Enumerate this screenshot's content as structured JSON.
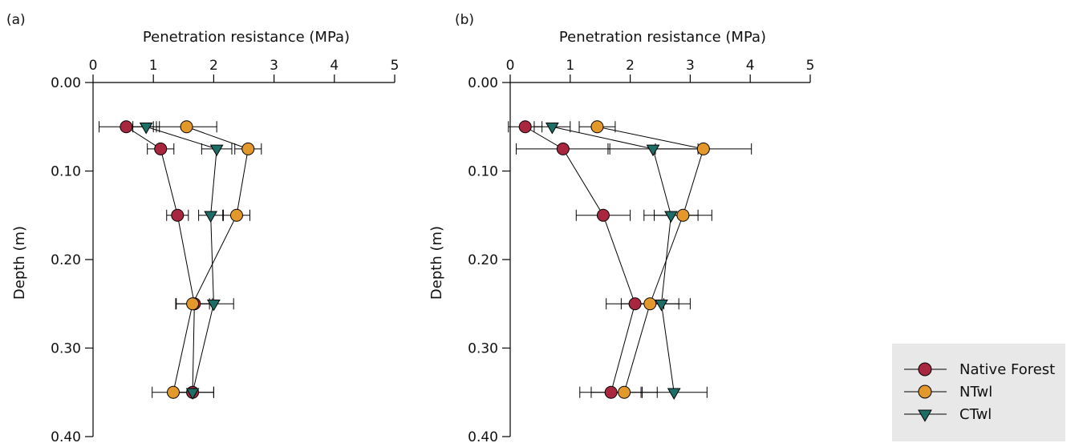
{
  "chart_data": [
    {
      "type": "scatter",
      "panel_label": "(a)",
      "xlabel": "Penetration resistance (MPa)",
      "ylabel": "Depth (m)",
      "xlim": [
        0,
        5
      ],
      "ylim": [
        0,
        0.4
      ],
      "x_ticks": [
        "0",
        "1",
        "2",
        "3",
        "4",
        "5"
      ],
      "y_ticks": [
        "0.00",
        "0.10",
        "0.20",
        "0.30",
        "0.40"
      ],
      "series": [
        {
          "name": "Native Forest",
          "marker": "circle",
          "color": "#a8273f",
          "points": [
            {
              "x": 0.55,
              "y": 0.05,
              "err": 0.45
            },
            {
              "x": 1.12,
              "y": 0.075,
              "err": 0.22
            },
            {
              "x": 1.4,
              "y": 0.15,
              "err": 0.18
            },
            {
              "x": 1.68,
              "y": 0.25,
              "err": 0.3
            },
            {
              "x": 1.65,
              "y": 0.35,
              "err": 0.35
            }
          ]
        },
        {
          "name": "NTwl",
          "marker": "circle",
          "color": "#e3982c",
          "points": [
            {
              "x": 1.55,
              "y": 0.05,
              "err": 0.5
            },
            {
              "x": 2.57,
              "y": 0.075,
              "err": 0.22
            },
            {
              "x": 2.38,
              "y": 0.15,
              "err": 0.22
            },
            {
              "x": 1.65,
              "y": 0.25,
              "err": 0.28
            },
            {
              "x": 1.33,
              "y": 0.35,
              "err": 0.35
            }
          ]
        },
        {
          "name": "CTwl",
          "marker": "triangle-down",
          "color": "#1e6e68",
          "points": [
            {
              "x": 0.88,
              "y": 0.05,
              "err": 0.22
            },
            {
              "x": 2.05,
              "y": 0.075,
              "err": 0.25
            },
            {
              "x": 1.95,
              "y": 0.15,
              "err": 0.2
            },
            {
              "x": 2.0,
              "y": 0.25,
              "err": 0.33
            },
            {
              "x": 1.65,
              "y": 0.35,
              "err": 0.35
            }
          ]
        }
      ]
    },
    {
      "type": "scatter",
      "panel_label": "(b)",
      "xlabel": "Penetration resistance (MPa)",
      "ylabel": "Depth (m)",
      "xlim": [
        0,
        5
      ],
      "ylim": [
        0,
        0.4
      ],
      "x_ticks": [
        "0",
        "1",
        "2",
        "3",
        "4",
        "5"
      ],
      "y_ticks": [
        "0.00",
        "0.10",
        "0.20",
        "0.30",
        "0.40"
      ],
      "series": [
        {
          "name": "Native Forest",
          "marker": "circle",
          "color": "#a8273f",
          "points": [
            {
              "x": 0.25,
              "y": 0.05,
              "err": 0.28
            },
            {
              "x": 0.88,
              "y": 0.075,
              "err": 0.78
            },
            {
              "x": 1.55,
              "y": 0.15,
              "err": 0.45
            },
            {
              "x": 2.08,
              "y": 0.25,
              "err": 0.48
            },
            {
              "x": 1.68,
              "y": 0.35,
              "err": 0.52
            }
          ]
        },
        {
          "name": "NTwl",
          "marker": "circle",
          "color": "#e3982c",
          "points": [
            {
              "x": 1.45,
              "y": 0.05,
              "err": 0.3
            },
            {
              "x": 3.22,
              "y": 0.075,
              "err": 0.8
            },
            {
              "x": 2.88,
              "y": 0.15,
              "err": 0.48
            },
            {
              "x": 2.33,
              "y": 0.25,
              "err": 0.48
            },
            {
              "x": 1.9,
              "y": 0.35,
              "err": 0.55
            }
          ]
        },
        {
          "name": "CTwl",
          "marker": "triangle-down",
          "color": "#1e6e68",
          "points": [
            {
              "x": 0.7,
              "y": 0.05,
              "err": 0.3
            },
            {
              "x": 2.38,
              "y": 0.075,
              "err": 0.75
            },
            {
              "x": 2.68,
              "y": 0.15,
              "err": 0.45
            },
            {
              "x": 2.52,
              "y": 0.25,
              "err": 0.48
            },
            {
              "x": 2.73,
              "y": 0.35,
              "err": 0.55
            }
          ]
        }
      ]
    }
  ],
  "legend": {
    "placement": "bottom-right",
    "background": "#e8e8e8",
    "items": [
      {
        "label": "Native Forest",
        "marker": "circle",
        "color": "#a8273f"
      },
      {
        "label": "NTwl",
        "marker": "circle",
        "color": "#e3982c"
      },
      {
        "label": "CTwl",
        "marker": "triangle-down",
        "color": "#1e6e68"
      }
    ]
  }
}
